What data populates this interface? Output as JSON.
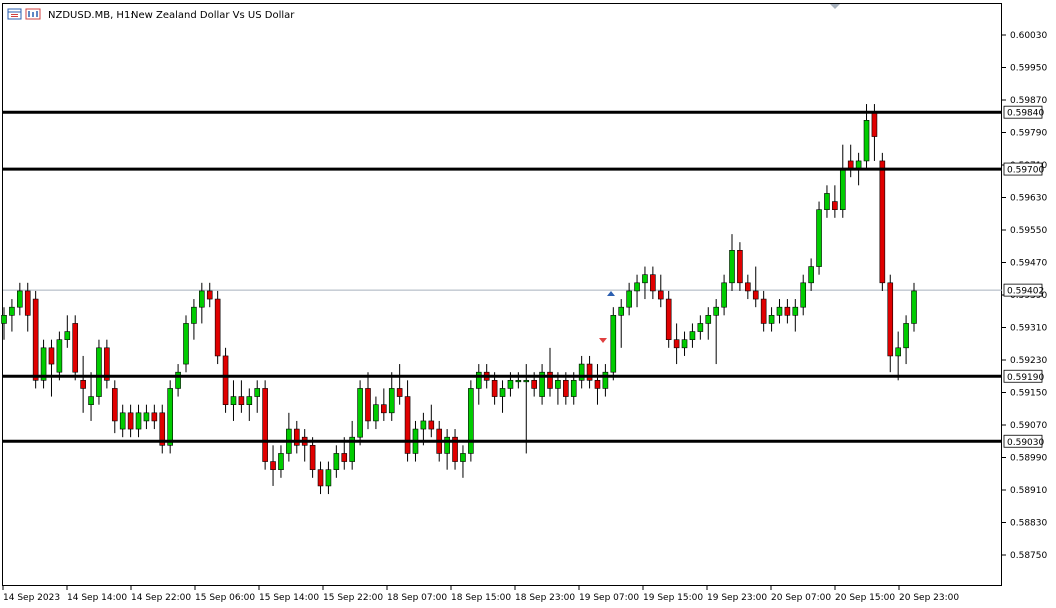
{
  "header": {
    "symbol_period": "NZDUSD.MB, H1:",
    "description": "New Zealand Dollar Vs US Dollar",
    "icons": [
      "table-icon",
      "chart-window-icon"
    ]
  },
  "colors": {
    "bull": "#00cc00",
    "bear": "#e00000",
    "wick": "#000000",
    "level_line": "#000000",
    "price_line": "#a7b1bd",
    "frame": "#000000"
  },
  "chart_data": {
    "type": "candlestick",
    "symbol": "NZDUSD.MB",
    "timeframe": "H1",
    "y_ticks": [
      "0.60030",
      "0.59950",
      "0.59870",
      "0.59790",
      "0.59710",
      "0.59630",
      "0.59550",
      "0.59470",
      "0.59390",
      "0.59310",
      "0.59230",
      "0.59150",
      "0.59070",
      "0.58990",
      "0.58910",
      "0.58830",
      "0.58750"
    ],
    "x_ticks": [
      "14 Sep 2023",
      "14 Sep 14:00",
      "14 Sep 22:00",
      "15 Sep 06:00",
      "15 Sep 14:00",
      "15 Sep 22:00",
      "18 Sep 07:00",
      "18 Sep 15:00",
      "18 Sep 23:00",
      "19 Sep 07:00",
      "19 Sep 15:00",
      "19 Sep 23:00",
      "20 Sep 07:00",
      "20 Sep 15:00",
      "20 Sep 23:00"
    ],
    "horizontal_levels": [
      {
        "price": 0.5984,
        "label": "0.59840"
      },
      {
        "price": 0.597,
        "label": "0.59700"
      },
      {
        "price": 0.5919,
        "label": "0.59190"
      },
      {
        "price": 0.5903,
        "label": "0.59030"
      }
    ],
    "current_price": {
      "price": 0.59402,
      "label": "0.59402"
    },
    "ohlc": [
      [
        0.5932,
        0.5936,
        0.5928,
        0.5934
      ],
      [
        0.5934,
        0.5938,
        0.593,
        0.5936
      ],
      [
        0.5936,
        0.5942,
        0.5934,
        0.594
      ],
      [
        0.594,
        0.5942,
        0.593,
        0.5934
      ],
      [
        0.5938,
        0.594,
        0.5916,
        0.5918
      ],
      [
        0.5918,
        0.5928,
        0.5916,
        0.5926
      ],
      [
        0.5926,
        0.5928,
        0.5914,
        0.5922
      ],
      [
        0.592,
        0.593,
        0.5918,
        0.5928
      ],
      [
        0.5928,
        0.5934,
        0.5926,
        0.593
      ],
      [
        0.5932,
        0.5934,
        0.5918,
        0.592
      ],
      [
        0.5918,
        0.5924,
        0.591,
        0.5916
      ],
      [
        0.5912,
        0.592,
        0.5908,
        0.5914
      ],
      [
        0.5914,
        0.5928,
        0.5912,
        0.5926
      ],
      [
        0.5926,
        0.5928,
        0.5916,
        0.5918
      ],
      [
        0.5916,
        0.5918,
        0.5905,
        0.5908
      ],
      [
        0.5906,
        0.5912,
        0.5904,
        0.591
      ],
      [
        0.591,
        0.5912,
        0.5904,
        0.5906
      ],
      [
        0.5906,
        0.5912,
        0.5904,
        0.591
      ],
      [
        0.5908,
        0.5912,
        0.5906,
        0.591
      ],
      [
        0.591,
        0.5912,
        0.5906,
        0.5908
      ],
      [
        0.591,
        0.5912,
        0.59,
        0.5902
      ],
      [
        0.5902,
        0.5918,
        0.59,
        0.5916
      ],
      [
        0.5916,
        0.5922,
        0.5914,
        0.592
      ],
      [
        0.5922,
        0.5934,
        0.592,
        0.5932
      ],
      [
        0.5932,
        0.5938,
        0.5928,
        0.5936
      ],
      [
        0.5936,
        0.5942,
        0.5932,
        0.594
      ],
      [
        0.594,
        0.5942,
        0.5936,
        0.5938
      ],
      [
        0.5938,
        0.594,
        0.5922,
        0.5924
      ],
      [
        0.5924,
        0.5926,
        0.591,
        0.5912
      ],
      [
        0.5912,
        0.5918,
        0.5908,
        0.5914
      ],
      [
        0.5914,
        0.5918,
        0.591,
        0.5912
      ],
      [
        0.5912,
        0.5916,
        0.5908,
        0.5914
      ],
      [
        0.5914,
        0.5918,
        0.591,
        0.5916
      ],
      [
        0.5916,
        0.5918,
        0.5896,
        0.5898
      ],
      [
        0.5898,
        0.5902,
        0.5892,
        0.5896
      ],
      [
        0.5896,
        0.5902,
        0.5894,
        0.59
      ],
      [
        0.59,
        0.591,
        0.5898,
        0.5906
      ],
      [
        0.5906,
        0.5908,
        0.59,
        0.5902
      ],
      [
        0.5904,
        0.5906,
        0.5898,
        0.5902
      ],
      [
        0.5902,
        0.5904,
        0.5894,
        0.5896
      ],
      [
        0.5896,
        0.5898,
        0.589,
        0.5892
      ],
      [
        0.5892,
        0.5898,
        0.589,
        0.5896
      ],
      [
        0.5896,
        0.5902,
        0.5894,
        0.59
      ],
      [
        0.59,
        0.5904,
        0.5896,
        0.5898
      ],
      [
        0.5898,
        0.5908,
        0.5896,
        0.5904
      ],
      [
        0.5904,
        0.5918,
        0.5902,
        0.5916
      ],
      [
        0.5916,
        0.592,
        0.5906,
        0.5908
      ],
      [
        0.5908,
        0.5914,
        0.5906,
        0.5912
      ],
      [
        0.5912,
        0.5916,
        0.5908,
        0.591
      ],
      [
        0.591,
        0.592,
        0.5908,
        0.5916
      ],
      [
        0.5916,
        0.5922,
        0.5912,
        0.5914
      ],
      [
        0.5914,
        0.5918,
        0.5898,
        0.59
      ],
      [
        0.59,
        0.5908,
        0.5898,
        0.5906
      ],
      [
        0.5906,
        0.591,
        0.5902,
        0.5908
      ],
      [
        0.5908,
        0.5912,
        0.5904,
        0.5906
      ],
      [
        0.5906,
        0.5908,
        0.5898,
        0.59
      ],
      [
        0.59,
        0.5906,
        0.5896,
        0.5904
      ],
      [
        0.5904,
        0.5906,
        0.5896,
        0.5898
      ],
      [
        0.5898,
        0.5902,
        0.5894,
        0.59
      ],
      [
        0.59,
        0.5918,
        0.5898,
        0.5916
      ],
      [
        0.5916,
        0.5922,
        0.5912,
        0.592
      ],
      [
        0.592,
        0.5922,
        0.5916,
        0.5918
      ],
      [
        0.5918,
        0.592,
        0.5912,
        0.5914
      ],
      [
        0.5914,
        0.5918,
        0.591,
        0.5916
      ],
      [
        0.5916,
        0.592,
        0.5914,
        0.5918
      ],
      [
        0.5918,
        0.592,
        0.5916,
        0.5918
      ],
      [
        0.5918,
        0.5922,
        0.59,
        0.5918
      ],
      [
        0.5918,
        0.592,
        0.5914,
        0.5916
      ],
      [
        0.5914,
        0.5922,
        0.5912,
        0.592
      ],
      [
        0.592,
        0.5926,
        0.5914,
        0.5916
      ],
      [
        0.5916,
        0.592,
        0.5912,
        0.5918
      ],
      [
        0.5918,
        0.592,
        0.5912,
        0.5914
      ],
      [
        0.5914,
        0.592,
        0.5912,
        0.5918
      ],
      [
        0.5918,
        0.5924,
        0.5916,
        0.5922
      ],
      [
        0.5922,
        0.5924,
        0.5916,
        0.5918
      ],
      [
        0.5918,
        0.5922,
        0.5912,
        0.5916
      ],
      [
        0.5916,
        0.5922,
        0.5914,
        0.592
      ],
      [
        0.592,
        0.5936,
        0.5918,
        0.5934
      ],
      [
        0.5934,
        0.5938,
        0.5926,
        0.5936
      ],
      [
        0.5936,
        0.5942,
        0.5934,
        0.594
      ],
      [
        0.594,
        0.5944,
        0.5936,
        0.5942
      ],
      [
        0.5942,
        0.5946,
        0.5938,
        0.5944
      ],
      [
        0.5944,
        0.5946,
        0.5938,
        0.594
      ],
      [
        0.594,
        0.5944,
        0.5936,
        0.5938
      ],
      [
        0.5938,
        0.594,
        0.5926,
        0.5928
      ],
      [
        0.5928,
        0.5932,
        0.5922,
        0.5926
      ],
      [
        0.5926,
        0.593,
        0.5924,
        0.5928
      ],
      [
        0.5928,
        0.5932,
        0.5926,
        0.593
      ],
      [
        0.593,
        0.5934,
        0.5928,
        0.5932
      ],
      [
        0.5932,
        0.5936,
        0.5928,
        0.5934
      ],
      [
        0.5934,
        0.5938,
        0.5922,
        0.5936
      ],
      [
        0.5936,
        0.5944,
        0.5934,
        0.5942
      ],
      [
        0.5942,
        0.5954,
        0.594,
        0.595
      ],
      [
        0.595,
        0.5952,
        0.594,
        0.5942
      ],
      [
        0.5942,
        0.5944,
        0.5938,
        0.594
      ],
      [
        0.594,
        0.5946,
        0.5936,
        0.5938
      ],
      [
        0.5938,
        0.594,
        0.593,
        0.5932
      ],
      [
        0.5932,
        0.5936,
        0.593,
        0.5934
      ],
      [
        0.5934,
        0.5938,
        0.5932,
        0.5936
      ],
      [
        0.5936,
        0.5938,
        0.5932,
        0.5934
      ],
      [
        0.5934,
        0.5938,
        0.593,
        0.5936
      ],
      [
        0.5936,
        0.5944,
        0.5934,
        0.5942
      ],
      [
        0.5942,
        0.5948,
        0.594,
        0.5946
      ],
      [
        0.5946,
        0.5962,
        0.5944,
        0.596
      ],
      [
        0.596,
        0.5966,
        0.5958,
        0.5964
      ],
      [
        0.5962,
        0.5966,
        0.5958,
        0.596
      ],
      [
        0.596,
        0.5976,
        0.5958,
        0.597
      ],
      [
        0.5972,
        0.5976,
        0.5968,
        0.597
      ],
      [
        0.597,
        0.5974,
        0.5966,
        0.5972
      ],
      [
        0.5972,
        0.5986,
        0.597,
        0.5982
      ],
      [
        0.5984,
        0.5986,
        0.5972,
        0.5978
      ],
      [
        0.5972,
        0.5974,
        0.594,
        0.5942
      ],
      [
        0.5942,
        0.5944,
        0.592,
        0.5924
      ],
      [
        0.5924,
        0.593,
        0.5918,
        0.5926
      ],
      [
        0.5926,
        0.5934,
        0.5922,
        0.5932
      ],
      [
        0.5932,
        0.5942,
        0.593,
        0.594
      ]
    ]
  }
}
